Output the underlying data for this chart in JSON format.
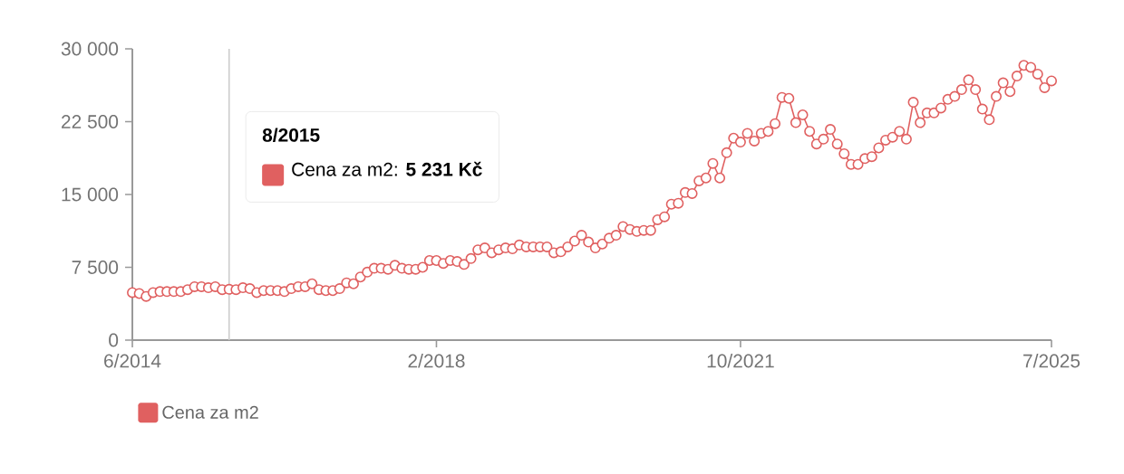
{
  "chart_data": {
    "type": "line",
    "x": [
      "2014-06",
      "2014-07",
      "2014-08",
      "2014-09",
      "2014-10",
      "2014-11",
      "2014-12",
      "2015-01",
      "2015-02",
      "2015-03",
      "2015-04",
      "2015-05",
      "2015-06",
      "2015-07",
      "2015-08",
      "2015-09",
      "2015-10",
      "2015-11",
      "2015-12",
      "2016-01",
      "2016-02",
      "2016-03",
      "2016-04",
      "2016-05",
      "2016-06",
      "2016-07",
      "2016-08",
      "2016-09",
      "2016-10",
      "2016-11",
      "2016-12",
      "2017-01",
      "2017-02",
      "2017-03",
      "2017-04",
      "2017-05",
      "2017-06",
      "2017-07",
      "2017-08",
      "2017-09",
      "2017-10",
      "2017-11",
      "2017-12",
      "2018-01",
      "2018-02",
      "2018-03",
      "2018-04",
      "2018-05",
      "2018-06",
      "2018-07",
      "2018-08",
      "2018-09",
      "2018-10",
      "2018-11",
      "2018-12",
      "2019-01",
      "2019-02",
      "2019-03",
      "2019-04",
      "2019-05",
      "2019-06",
      "2019-07",
      "2019-08",
      "2019-09",
      "2019-10",
      "2019-11",
      "2019-12",
      "2020-01",
      "2020-02",
      "2020-03",
      "2020-04",
      "2020-05",
      "2020-06",
      "2020-07",
      "2020-08",
      "2020-09",
      "2020-10",
      "2020-11",
      "2020-12",
      "2021-01",
      "2021-02",
      "2021-03",
      "2021-04",
      "2021-05",
      "2021-06",
      "2021-07",
      "2021-08",
      "2021-09",
      "2021-10",
      "2021-11",
      "2021-12",
      "2022-01",
      "2022-02",
      "2022-03",
      "2022-04",
      "2022-05",
      "2022-06",
      "2022-07",
      "2022-08",
      "2022-09",
      "2022-10",
      "2022-11",
      "2022-12",
      "2023-01",
      "2023-02",
      "2023-03",
      "2023-04",
      "2023-05",
      "2023-06",
      "2023-07",
      "2023-08",
      "2023-09",
      "2023-10",
      "2023-11",
      "2023-12",
      "2024-01",
      "2024-02",
      "2024-03",
      "2024-04",
      "2024-05",
      "2024-06",
      "2024-07",
      "2024-08",
      "2024-09",
      "2024-10",
      "2024-11",
      "2024-12",
      "2025-01",
      "2025-02",
      "2025-03",
      "2025-04",
      "2025-05",
      "2025-06",
      "2025-07"
    ],
    "series": [
      {
        "name": "Cena za m2",
        "color": "#e06060",
        "values": [
          4900,
          4800,
          4500,
          4900,
          5000,
          5000,
          5000,
          5000,
          5200,
          5500,
          5500,
          5400,
          5500,
          5200,
          5231,
          5200,
          5400,
          5300,
          4900,
          5100,
          5100,
          5100,
          5000,
          5300,
          5500,
          5500,
          5800,
          5200,
          5100,
          5100,
          5300,
          5900,
          5800,
          6500,
          7000,
          7400,
          7400,
          7300,
          7700,
          7400,
          7300,
          7300,
          7500,
          8200,
          8200,
          7900,
          8200,
          8100,
          7800,
          8400,
          9300,
          9500,
          9000,
          9300,
          9500,
          9400,
          9800,
          9600,
          9600,
          9600,
          9600,
          9000,
          9100,
          9600,
          10200,
          10800,
          10100,
          9500,
          9900,
          10500,
          10800,
          11700,
          11400,
          11200,
          11300,
          11300,
          12400,
          12700,
          14000,
          14100,
          15200,
          15100,
          16400,
          16700,
          18200,
          16700,
          19300,
          20800,
          20400,
          21300,
          20500,
          21300,
          21500,
          22300,
          25000,
          24900,
          22400,
          23200,
          21500,
          20200,
          20700,
          21700,
          20200,
          19200,
          18100,
          18100,
          18700,
          18900,
          19800,
          20600,
          20900,
          21500,
          20700,
          24500,
          22400,
          23400,
          23400,
          23900,
          24800,
          25100,
          25800,
          26800,
          25800,
          23800,
          22700,
          25100,
          26500,
          25600,
          27200,
          28300,
          28100,
          27400,
          26000,
          26700
        ]
      }
    ],
    "xlim": [
      "2014-06",
      "2025-07"
    ],
    "xticks": [
      {
        "value": "2014-06",
        "label": "6/2014"
      },
      {
        "value": "2018-02",
        "label": "2/2018"
      },
      {
        "value": "2021-10",
        "label": "10/2021"
      },
      {
        "value": "2025-07",
        "label": "7/2025"
      }
    ],
    "ylim": [
      0,
      30000
    ],
    "yticks": [
      0,
      {
        "value": 7500,
        "label": "7 500"
      },
      {
        "value": 15000,
        "label": "15 000"
      },
      {
        "value": 22500,
        "label": "22 500"
      },
      {
        "value": 30000,
        "label": "30 000"
      }
    ],
    "ref_lines": [
      {
        "axis": "x",
        "value": "2015-08",
        "color": "#cccccc"
      }
    ],
    "annotations": [
      "8/2015",
      "Cena za m2: **5 231 Kč**"
    ],
    "marker": "circle",
    "line_style": "solid",
    "grid": false,
    "legend": "bottom left"
  }
}
